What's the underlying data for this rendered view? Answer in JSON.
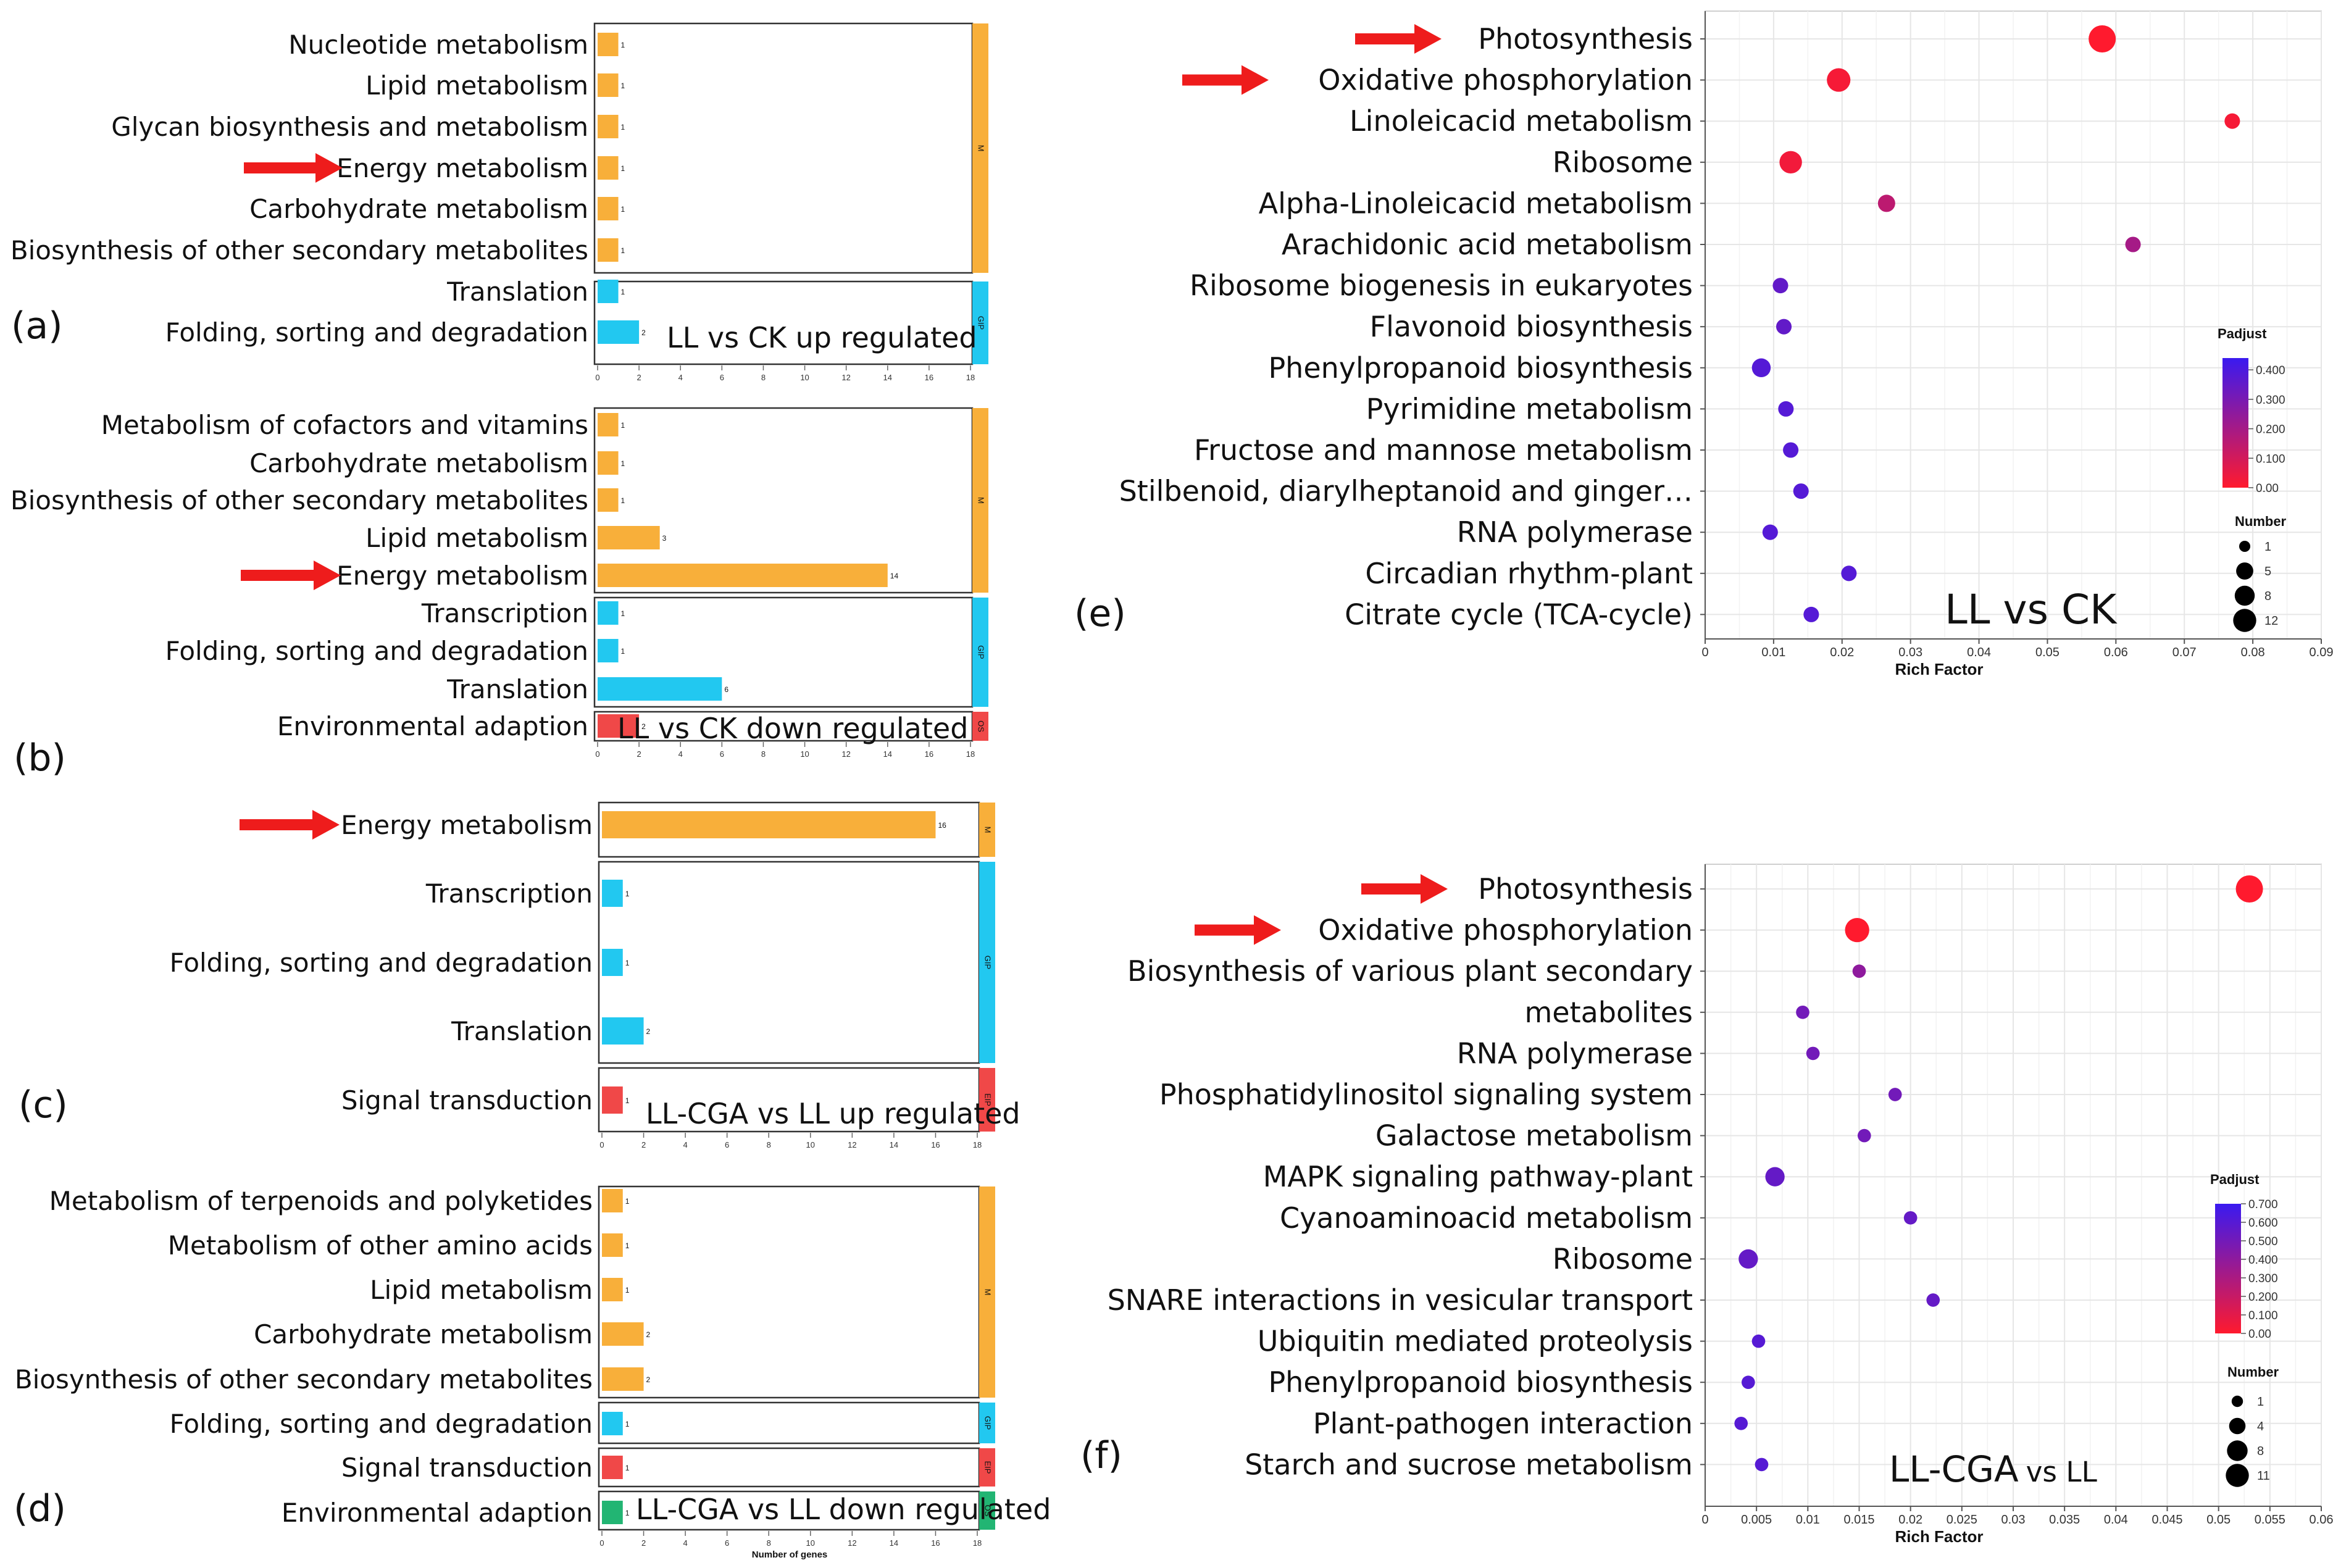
{
  "chart_data": [
    {
      "id": "a",
      "type": "bar",
      "orientation": "horizontal",
      "panel_label": "(a)",
      "title": "LL vs CK up regulated",
      "xlim": [
        0,
        18
      ],
      "xticks": [
        "0",
        "2",
        "4",
        "6",
        "8",
        "10",
        "12",
        "14",
        "16",
        "18"
      ],
      "groups": [
        {
          "code": "M",
          "color": "#F8AF3A",
          "categories": [
            "Nucleotide metabolism",
            "Lipid metabolism",
            "Glycan biosynthesis and metabolism",
            "Energy metabolism",
            "Carbohydrate metabolism",
            "Biosynthesis of other secondary metabolites"
          ],
          "values": [
            1,
            1,
            1,
            1,
            1,
            1
          ]
        },
        {
          "code": "GIP",
          "color": "#22C8F0",
          "categories": [
            "Translation",
            "Folding, sorting and degradation"
          ],
          "values": [
            1,
            2
          ]
        }
      ],
      "arrow_on": "Energy metabolism"
    },
    {
      "id": "b",
      "type": "bar",
      "orientation": "horizontal",
      "panel_label": "(b)",
      "title": "LL vs CK down regulated",
      "xlim": [
        0,
        18
      ],
      "xticks": [
        "0",
        "2",
        "4",
        "6",
        "8",
        "10",
        "12",
        "14",
        "16",
        "18"
      ],
      "groups": [
        {
          "code": "M",
          "color": "#F8AF3A",
          "categories": [
            "Metabolism of cofactors and vitamins",
            "Carbohydrate metabolism",
            "Biosynthesis of other secondary metabolites",
            "Lipid metabolism",
            "Energy metabolism"
          ],
          "values": [
            1,
            1,
            1,
            3,
            14
          ]
        },
        {
          "code": "GIP",
          "color": "#22C8F0",
          "categories": [
            "Transcription",
            "Folding, sorting and degradation",
            "Translation"
          ],
          "values": [
            1,
            1,
            6
          ]
        },
        {
          "code": "OS",
          "color": "#F04848",
          "categories": [
            "Environmental adaption"
          ],
          "values": [
            2
          ]
        }
      ],
      "arrow_on": "Energy metabolism"
    },
    {
      "id": "c",
      "type": "bar",
      "orientation": "horizontal",
      "panel_label": "(c)",
      "title": "LL-CGA vs LL up regulated",
      "xlim": [
        0,
        18
      ],
      "xticks": [
        "0",
        "2",
        "4",
        "6",
        "8",
        "10",
        "12",
        "14",
        "16",
        "18"
      ],
      "groups": [
        {
          "code": "M",
          "color": "#F8AF3A",
          "categories": [
            "Energy metabolism"
          ],
          "values": [
            16
          ]
        },
        {
          "code": "GIP",
          "color": "#22C8F0",
          "categories": [
            "Transcription",
            "Folding, sorting and degradation",
            "Translation"
          ],
          "values": [
            1,
            1,
            2
          ]
        },
        {
          "code": "EIP",
          "color": "#F04848",
          "categories": [
            "Signal transduction"
          ],
          "values": [
            1
          ]
        }
      ],
      "arrow_on": "Energy metabolism"
    },
    {
      "id": "d",
      "type": "bar",
      "orientation": "horizontal",
      "panel_label": "(d)",
      "title": "LL-CGA vs LL down regulated",
      "xlabel": "Number of genes",
      "xlim": [
        0,
        18
      ],
      "xticks": [
        "0",
        "2",
        "4",
        "6",
        "8",
        "10",
        "12",
        "14",
        "16",
        "18"
      ],
      "groups": [
        {
          "code": "M",
          "color": "#F8AF3A",
          "categories": [
            "Metabolism of terpenoids and polyketides",
            "Metabolism of other amino acids",
            "Lipid metabolism",
            "Carbohydrate metabolism",
            "Biosynthesis of other secondary metabolites"
          ],
          "values": [
            1,
            1,
            1,
            2,
            2
          ]
        },
        {
          "code": "GIP",
          "color": "#22C8F0",
          "categories": [
            "Folding, sorting and degradation"
          ],
          "values": [
            1
          ]
        },
        {
          "code": "EIP",
          "color": "#F04848",
          "categories": [
            "Signal transduction"
          ],
          "values": [
            1
          ]
        },
        {
          "code": "OS",
          "color": "#22B573",
          "categories": [
            "Environmental adaption"
          ],
          "values": [
            1
          ]
        }
      ]
    },
    {
      "id": "e",
      "type": "scatter",
      "panel_label": "(e)",
      "title": "LL vs CK",
      "xlabel": "Rich Factor",
      "xlim": [
        0,
        0.09
      ],
      "xticks": [
        "0",
        "0.01",
        "0.02",
        "0.03",
        "0.04",
        "0.05",
        "0.06",
        "0.07",
        "0.08",
        "0.09"
      ],
      "xtick_values": [
        0,
        0.01,
        0.02,
        0.03,
        0.04,
        0.05,
        0.06,
        0.07,
        0.08,
        0.09
      ],
      "categories": [
        "Photosynthesis",
        "Oxidative phosphorylation",
        "Linoleicacid metabolism",
        "Ribosome",
        "Alpha-Linoleicacid metabolism",
        "Arachidonic acid metabolism",
        "Ribosome biogenesis in eukaryotes",
        "Flavonoid biosynthesis",
        "Phenylpropanoid biosynthesis",
        "Pyrimidine metabolism",
        "Fructose and mannose metabolism",
        "Stilbenoid, diarylheptanoid and ginger…",
        "RNA polymerase",
        "Circadian rhythm-plant",
        "Citrate cycle (TCA-cycle)"
      ],
      "rich_factor": [
        0.058,
        0.0195,
        0.077,
        0.0125,
        0.0265,
        0.0625,
        0.011,
        0.0115,
        0.0082,
        0.0118,
        0.0125,
        0.014,
        0.0095,
        0.021,
        0.0155
      ],
      "number": [
        12,
        8,
        2,
        7,
        3,
        2,
        2,
        2,
        4,
        2,
        2,
        2,
        2,
        2,
        2
      ],
      "padjust": [
        0.0,
        0.02,
        0.02,
        0.03,
        0.15,
        0.2,
        0.35,
        0.35,
        0.38,
        0.38,
        0.38,
        0.38,
        0.38,
        0.38,
        0.38
      ],
      "arrows_on": [
        "Photosynthesis",
        "Oxidative phosphorylation"
      ],
      "legend": {
        "padjust_title": "Padjust",
        "padjust_ticks": [
          "0.400",
          "0.300",
          "0.200",
          "0.100",
          "0.00"
        ],
        "padjust_tick_values": [
          0.4,
          0.3,
          0.2,
          0.1,
          0.0
        ],
        "padjust_max": 0.44,
        "number_title": "Number",
        "number_ticks": [
          "1",
          "5",
          "8",
          "12"
        ],
        "number_values": [
          1,
          5,
          8,
          12
        ]
      }
    },
    {
      "id": "f",
      "type": "scatter",
      "panel_label": "(f)",
      "title": "LL-CGA",
      "title_suffix": "vs LL",
      "xlabel": "Rich Factor",
      "xlim": [
        0,
        0.06
      ],
      "xticks": [
        "0",
        "0.005",
        "0.01",
        "0.015",
        "0.02",
        "0.025",
        "0.03",
        "0.035",
        "0.04",
        "0.045",
        "0.05",
        "0.055",
        "0.06"
      ],
      "xtick_values": [
        0,
        0.005,
        0.01,
        0.015,
        0.02,
        0.025,
        0.03,
        0.035,
        0.04,
        0.045,
        0.05,
        0.055,
        0.06
      ],
      "categories": [
        "Photosynthesis",
        "Oxidative phosphorylation",
        "Biosynthesis of various plant secondary",
        "metabolites",
        "RNA polymerase",
        "Phosphatidylinositol signaling system",
        "Galactose metabolism",
        "MAPK signaling pathway-plant",
        "Cyanoaminoacid metabolism",
        "Ribosome",
        "SNARE interactions in vesicular transport",
        "Ubiquitin mediated proteolysis",
        "Phenylpropanoid biosynthesis",
        "Plant-pathogen interaction",
        "Starch and sucrose metabolism"
      ],
      "rich_factor": [
        0.053,
        0.0148,
        0.015,
        0.0095,
        0.0105,
        0.0185,
        0.0155,
        0.0068,
        0.02,
        0.0042,
        0.0222,
        0.0052,
        0.0042,
        0.0035,
        0.0055
      ],
      "number": [
        11,
        8,
        1,
        1,
        1,
        1,
        1,
        4,
        1,
        4,
        1,
        1,
        1,
        1,
        1
      ],
      "padjust": [
        0.0,
        0.0,
        0.4,
        0.5,
        0.5,
        0.5,
        0.5,
        0.55,
        0.55,
        0.55,
        0.55,
        0.6,
        0.6,
        0.6,
        0.6
      ],
      "arrows_on": [
        "Photosynthesis",
        "Oxidative phosphorylation"
      ],
      "legend": {
        "padjust_title": "Padjust",
        "padjust_ticks": [
          "0.700",
          "0.600",
          "0.500",
          "0.400",
          "0.300",
          "0.200",
          "0.100",
          "0.00"
        ],
        "padjust_tick_values": [
          0.7,
          0.6,
          0.5,
          0.4,
          0.3,
          0.2,
          0.1,
          0.0
        ],
        "padjust_max": 0.7,
        "number_title": "Number",
        "number_ticks": [
          "1",
          "4",
          "8",
          "11"
        ],
        "number_values": [
          1,
          4,
          8,
          11
        ]
      }
    }
  ],
  "colors": {
    "m": "#F8AF3A",
    "gip": "#22C8F0",
    "red": "#F04848",
    "green": "#22B573",
    "arrow": "#EE1C1C",
    "low_padj": "#FF1A2E",
    "high_padj": "#3A1AF0"
  }
}
